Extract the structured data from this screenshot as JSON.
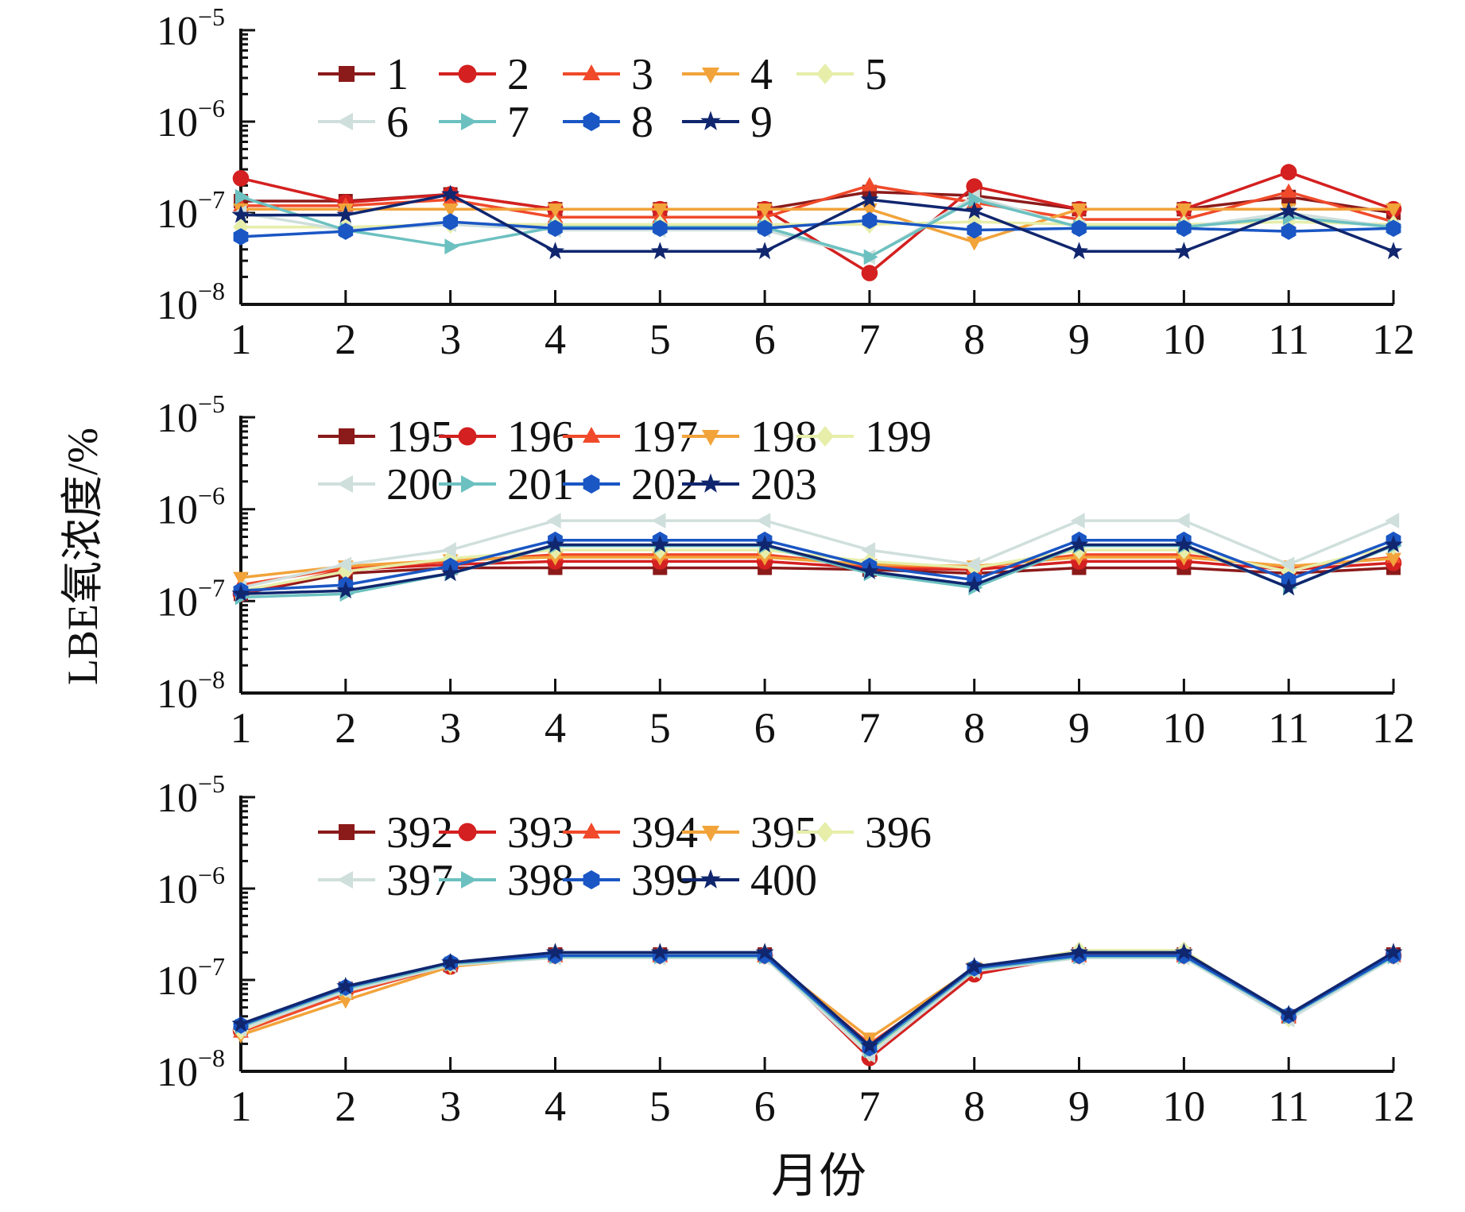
{
  "chart_data": {
    "type": "line",
    "ylabel": "LBE氧浓度/%",
    "xlabel": "月份",
    "x": [
      1,
      2,
      3,
      4,
      5,
      6,
      7,
      8,
      9,
      10,
      11,
      12
    ],
    "x_tick_labels": [
      "1",
      "2",
      "3",
      "4",
      "5",
      "6",
      "7",
      "8",
      "9",
      "10",
      "11",
      "12"
    ],
    "yscale": "log",
    "ylim": [
      1e-08,
      1e-05
    ],
    "y_tick_labels": [
      {
        "base": "10",
        "exp": "−8",
        "value": 1e-08
      },
      {
        "base": "10",
        "exp": "−7",
        "value": 1e-07
      },
      {
        "base": "10",
        "exp": "−6",
        "value": 1e-06
      },
      {
        "base": "10",
        "exp": "−5",
        "value": 1e-05
      }
    ],
    "series_styles": [
      {
        "color": "#8b1a1a",
        "marker": "square"
      },
      {
        "color": "#d42020",
        "marker": "circle"
      },
      {
        "color": "#f04a2a",
        "marker": "triangle-up"
      },
      {
        "color": "#f2a33a",
        "marker": "triangle-down"
      },
      {
        "color": "#e6eeaa",
        "marker": "diamond"
      },
      {
        "color": "#cfdfdc",
        "marker": "triangle-left"
      },
      {
        "color": "#6cc1c0",
        "marker": "triangle-right"
      },
      {
        "color": "#1a56c4",
        "marker": "hexagon"
      },
      {
        "color": "#10266e",
        "marker": "star"
      }
    ],
    "panels": [
      {
        "series": [
          {
            "name": "1",
            "values": [
              1.35e-07,
              1.35e-07,
              1.6e-07,
              1.1e-07,
              1.1e-07,
              1.1e-07,
              1.7e-07,
              1.55e-07,
              1.1e-07,
              1.1e-07,
              1.5e-07,
              1e-07
            ]
          },
          {
            "name": "2",
            "values": [
              2.4e-07,
              1.3e-07,
              1.6e-07,
              1.1e-07,
              1.1e-07,
              1.1e-07,
              2.2e-08,
              1.95e-07,
              1.1e-07,
              1.1e-07,
              2.8e-07,
              1.1e-07
            ]
          },
          {
            "name": "3",
            "values": [
              1.2e-07,
              1.2e-07,
              1.4e-07,
              9e-08,
              9e-08,
              9e-08,
              2e-07,
              1.3e-07,
              8.5e-08,
              8.5e-08,
              1.7e-07,
              8e-08
            ]
          },
          {
            "name": "4",
            "values": [
              1.1e-07,
              1.1e-07,
              1.1e-07,
              1.1e-07,
              1.1e-07,
              1.1e-07,
              1.1e-07,
              4.8e-08,
              1.1e-07,
              1.1e-07,
              1.1e-07,
              1.1e-07
            ]
          },
          {
            "name": "5",
            "values": [
              7e-08,
              7e-08,
              7.5e-08,
              7.5e-08,
              7.5e-08,
              7.5e-08,
              7.5e-08,
              8e-08,
              7.5e-08,
              7.5e-08,
              8e-08,
              7.5e-08
            ]
          },
          {
            "name": "6",
            "values": [
              1e-07,
              6.5e-08,
              7.5e-08,
              6.5e-08,
              6.5e-08,
              6.5e-08,
              3.3e-08,
              1.5e-07,
              7e-08,
              7e-08,
              1e-07,
              7e-08
            ]
          },
          {
            "name": "7",
            "values": [
              1.5e-07,
              6.5e-08,
              4.3e-08,
              7e-08,
              7e-08,
              7e-08,
              3.3e-08,
              1.4e-07,
              7e-08,
              7e-08,
              9e-08,
              7e-08
            ]
          },
          {
            "name": "8",
            "values": [
              5.5e-08,
              6.3e-08,
              8e-08,
              6.8e-08,
              6.8e-08,
              6.8e-08,
              8.3e-08,
              6.5e-08,
              6.8e-08,
              6.8e-08,
              6.3e-08,
              6.8e-08
            ]
          },
          {
            "name": "9",
            "values": [
              9.5e-08,
              9.5e-08,
              1.6e-07,
              3.8e-08,
              3.8e-08,
              3.8e-08,
              1.4e-07,
              1.05e-07,
              3.8e-08,
              3.8e-08,
              1.05e-07,
              3.8e-08
            ]
          }
        ]
      },
      {
        "series": [
          {
            "name": "195",
            "values": [
              1.2e-07,
              2e-07,
              2.3e-07,
              2.3e-07,
              2.3e-07,
              2.3e-07,
              2.2e-07,
              2e-07,
              2.3e-07,
              2.3e-07,
              2e-07,
              2.3e-07
            ]
          },
          {
            "name": "196",
            "values": [
              1.2e-07,
              2.2e-07,
              2.5e-07,
              2.7e-07,
              2.7e-07,
              2.7e-07,
              2.3e-07,
              2.2e-07,
              2.7e-07,
              2.7e-07,
              2.2e-07,
              2.6e-07
            ]
          },
          {
            "name": "197",
            "values": [
              1.5e-07,
              2.3e-07,
              2.7e-07,
              3.2e-07,
              3.2e-07,
              3.2e-07,
              2.4e-07,
              2.3e-07,
              3.2e-07,
              3.2e-07,
              2.3e-07,
              3e-07
            ]
          },
          {
            "name": "198",
            "values": [
              1.8e-07,
              2.4e-07,
              2.8e-07,
              3e-07,
              3e-07,
              3e-07,
              2.5e-07,
              2.4e-07,
              3e-07,
              3e-07,
              2.4e-07,
              2.9e-07
            ]
          },
          {
            "name": "199",
            "values": [
              1.3e-07,
              2.1e-07,
              2.9e-07,
              3.6e-07,
              3.6e-07,
              3.6e-07,
              2.7e-07,
              2.3e-07,
              3.6e-07,
              3.6e-07,
              2.1e-07,
              4e-07
            ]
          },
          {
            "name": "200",
            "values": [
              1.4e-07,
              2.5e-07,
              3.6e-07,
              7.5e-07,
              7.5e-07,
              7.5e-07,
              3.6e-07,
              2.5e-07,
              7.5e-07,
              7.5e-07,
              2.5e-07,
              7.5e-07
            ]
          },
          {
            "name": "201",
            "values": [
              1.1e-07,
              1.2e-07,
              2e-07,
              4e-07,
              4e-07,
              4e-07,
              2e-07,
              1.4e-07,
              4e-07,
              4e-07,
              1.4e-07,
              4e-07
            ]
          },
          {
            "name": "202",
            "values": [
              1.3e-07,
              1.5e-07,
              2.4e-07,
              4.6e-07,
              4.6e-07,
              4.6e-07,
              2.4e-07,
              1.7e-07,
              4.6e-07,
              4.6e-07,
              1.7e-07,
              4.6e-07
            ]
          },
          {
            "name": "203",
            "values": [
              1.2e-07,
              1.3e-07,
              2e-07,
              4.1e-07,
              4.1e-07,
              4.1e-07,
              2.1e-07,
              1.5e-07,
              4.1e-07,
              4.1e-07,
              1.4e-07,
              4.1e-07
            ]
          }
        ]
      },
      {
        "series": [
          {
            "name": "392",
            "values": [
              3e-08,
              8e-08,
              1.45e-07,
              1.9e-07,
              1.9e-07,
              1.9e-07,
              1.8e-08,
              1.3e-07,
              1.9e-07,
              1.9e-07,
              4e-08,
              1.9e-07
            ]
          },
          {
            "name": "393",
            "values": [
              2.8e-08,
              7.5e-08,
              1.4e-07,
              1.85e-07,
              1.85e-07,
              1.85e-07,
              1.4e-08,
              1.15e-07,
              1.85e-07,
              1.85e-07,
              4e-08,
              1.85e-07
            ]
          },
          {
            "name": "394",
            "values": [
              2.7e-08,
              7e-08,
              1.45e-07,
              1.8e-07,
              1.8e-07,
              1.8e-07,
              2e-08,
              1.25e-07,
              1.8e-07,
              1.8e-07,
              3.9e-08,
              1.8e-07
            ]
          },
          {
            "name": "395",
            "values": [
              2.5e-08,
              6e-08,
              1.4e-07,
              1.8e-07,
              1.8e-07,
              1.8e-07,
              2.3e-08,
              1.35e-07,
              1.8e-07,
              1.8e-07,
              4e-08,
              1.8e-07
            ]
          },
          {
            "name": "396",
            "values": [
              2.8e-08,
              8e-08,
              1.5e-07,
              1.9e-07,
              1.9e-07,
              1.9e-07,
              1.6e-08,
              1.3e-07,
              2.1e-07,
              2.1e-07,
              3.8e-08,
              1.9e-07
            ]
          },
          {
            "name": "397",
            "values": [
              2.9e-08,
              7.5e-08,
              1.45e-07,
              1.75e-07,
              1.75e-07,
              1.75e-07,
              1.5e-08,
              1.25e-07,
              1.75e-07,
              1.75e-07,
              3.7e-08,
              1.75e-07
            ]
          },
          {
            "name": "398",
            "values": [
              3.1e-08,
              8e-08,
              1.5e-07,
              1.8e-07,
              1.8e-07,
              1.8e-07,
              1.7e-08,
              1.3e-07,
              1.8e-07,
              1.8e-07,
              4e-08,
              1.8e-07
            ]
          },
          {
            "name": "399",
            "values": [
              3.2e-08,
              8.3e-08,
              1.55e-07,
              1.85e-07,
              1.85e-07,
              1.85e-07,
              1.8e-08,
              1.35e-07,
              1.85e-07,
              1.85e-07,
              4.1e-08,
              1.85e-07
            ]
          },
          {
            "name": "400",
            "values": [
              3.3e-08,
              8.5e-08,
              1.55e-07,
              2e-07,
              2e-07,
              2e-07,
              1.9e-08,
              1.4e-07,
              2e-07,
              2e-07,
              4.2e-08,
              2e-07
            ]
          }
        ]
      }
    ]
  }
}
